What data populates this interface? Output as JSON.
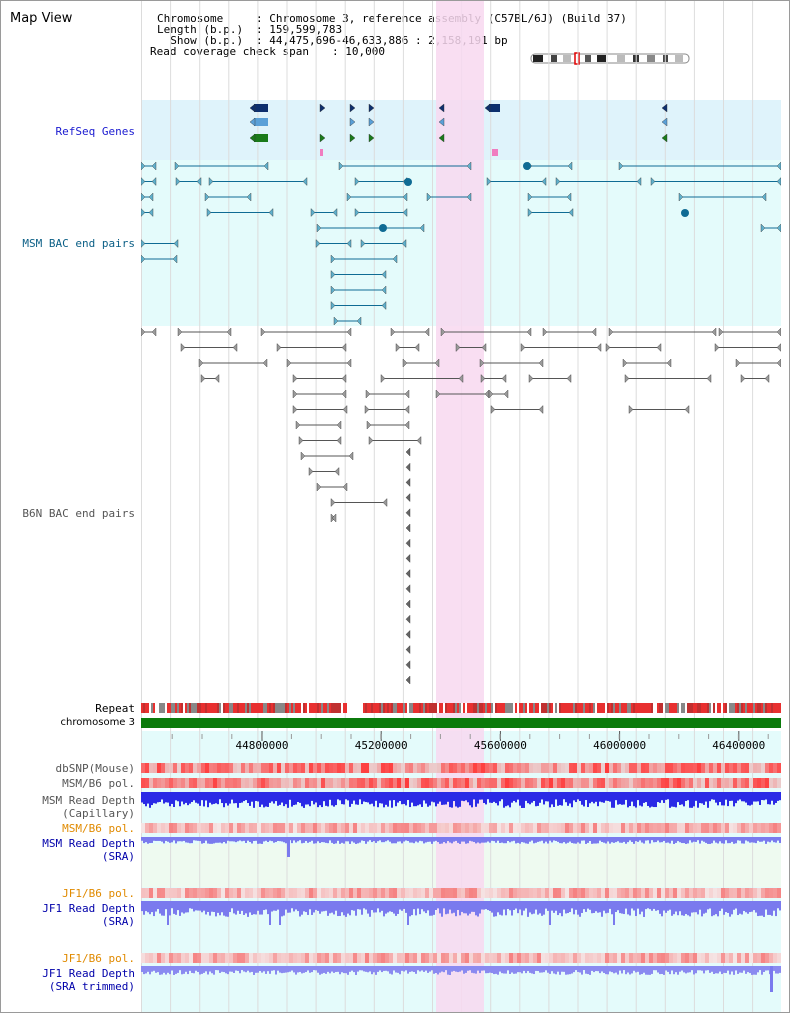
{
  "view_title": "Map View",
  "header": {
    "chromosome_key": "Chromosome   ",
    "chromosome_value": ": Chromosome 3, reference assembly (C57BL/6J) (Build 37)",
    "length_key": "Length (b.p.)",
    "length_value": ": 159,599,783",
    "show_key": "  Show (b.p.)",
    "show_value": ": 44,475,696-46,633,886 : 2,158,191 bp",
    "coverage_key": "Read coverage check span",
    "coverage_value": ": 10,000"
  },
  "tracks": {
    "refseq": "RefSeq Genes",
    "msm_bac": "MSM BAC end pairs",
    "b6n_bac": "B6N BAC end pairs",
    "repeat": "Repeat",
    "chromosome": "chromosome 3",
    "dbsnp": "dbSNP(Mouse)",
    "msm_b6_pol_1": "MSM/B6 pol.",
    "msm_read_depth_cap_1": "MSM Read Depth",
    "msm_read_depth_cap_2": "(Capillary)",
    "msm_b6_pol_2": "MSM/B6 pol.",
    "msm_read_depth_sra_1": "MSM Read Depth",
    "msm_read_depth_sra_2": "(SRA)",
    "jf1_b6_pol_1": "JF1/B6 pol.",
    "jf1_read_depth_sra_1": "JF1 Read Depth",
    "jf1_read_depth_sra_2": "(SRA)",
    "jf1_b6_pol_2": "JF1/B6 pol.",
    "jf1_read_depth_trim_1": "JF1 Read Depth",
    "jf1_read_depth_trim_2": "(SRA trimmed)"
  },
  "axis": {
    "ticks": [
      "44800000",
      "45200000",
      "45600000",
      "46000000",
      "46400000"
    ]
  },
  "colors": {
    "highlight": "#f8d8f0",
    "refseq_bg": "#dff3fb",
    "msm_bg": "#e4fbfb",
    "gene_dark": "#0d2f6e",
    "gene_mid": "#5aa0d8",
    "gene_green": "#1a7a1a",
    "msm_pair": "#0f6b94",
    "b6n_pair": "#555555",
    "chrom_bar": "#0b7a0b",
    "snp_red": "#ee2222",
    "depth_blue": "#2a2ae6",
    "depth_light": "#7a7aee"
  }
}
